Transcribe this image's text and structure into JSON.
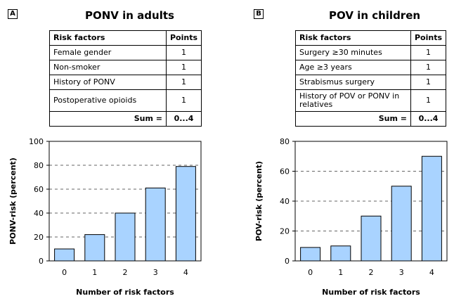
{
  "panels": [
    {
      "letter": "A",
      "title": "PONV in adults",
      "table": {
        "header_factor": "Risk factors",
        "header_points": "Points",
        "rows": [
          {
            "factor": "Female gender",
            "points": "1"
          },
          {
            "factor": "Non-smoker",
            "points": "1"
          },
          {
            "factor": "History of PONV",
            "points": "1"
          },
          {
            "factor": "Postoperative opioids",
            "points": "1"
          }
        ],
        "sum_label": "Sum =",
        "sum_value": "0...4"
      }
    },
    {
      "letter": "B",
      "title": "POV in children",
      "table": {
        "header_factor": "Risk factors",
        "header_points": "Points",
        "rows": [
          {
            "factor": "Surgery ≥30 minutes",
            "points": "1"
          },
          {
            "factor": "Age ≥3 years",
            "points": "1"
          },
          {
            "factor": "Strabismus surgery",
            "points": "1"
          },
          {
            "factor": "History of POV or PONV in relatives",
            "points": "1"
          }
        ],
        "sum_label": "Sum =",
        "sum_value": "0...4"
      }
    }
  ],
  "chart_data": [
    {
      "type": "bar",
      "categories": [
        "0",
        "1",
        "2",
        "3",
        "4"
      ],
      "values": [
        10,
        22,
        40,
        61,
        79
      ],
      "xlabel": "Number of risk factors",
      "ylabel": "PONV-risk (percent)",
      "ylim": [
        0,
        100
      ],
      "yticks": [
        0,
        20,
        40,
        60,
        80,
        100
      ],
      "grid": "dashed horizontal",
      "bar_color": "#a9d3ff"
    },
    {
      "type": "bar",
      "categories": [
        "0",
        "1",
        "2",
        "3",
        "4"
      ],
      "values": [
        9,
        10,
        30,
        50,
        70
      ],
      "xlabel": "Number of risk factors",
      "ylabel": "POV-risk (percent)",
      "ylim": [
        0,
        80
      ],
      "yticks": [
        0,
        20,
        40,
        60,
        80
      ],
      "grid": "dashed horizontal",
      "bar_color": "#a9d3ff"
    }
  ]
}
